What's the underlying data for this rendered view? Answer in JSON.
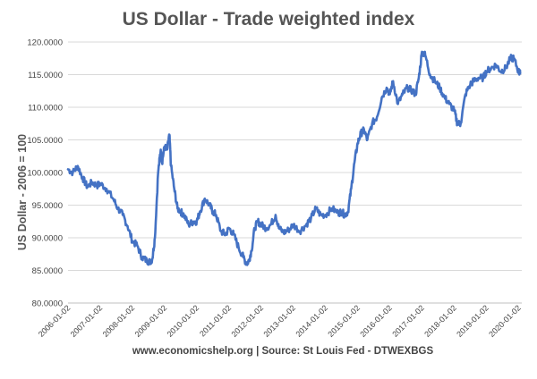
{
  "chart_data": {
    "type": "line",
    "title": "US Dollar - Trade weighted index",
    "xlabel": "",
    "ylabel": "US Dollar - 2006 = 100",
    "ylim": [
      80,
      120
    ],
    "y_ticks": [
      "120.0000",
      "115.0000",
      "110.0000",
      "105.0000",
      "100.0000",
      "95.0000",
      "90.0000",
      "85.0000",
      "80.0000"
    ],
    "x_ticks": [
      "2006-01-02",
      "2007-01-02",
      "2008-01-02",
      "2009-01-02",
      "2010-01-02",
      "2011-01-02",
      "2012-01-02",
      "2013-01-02",
      "2014-01-02",
      "2015-01-02",
      "2016-01-02",
      "2017-01-02",
      "2018-01-02",
      "2019-01-02",
      "2020-01-02"
    ],
    "xlim": [
      2006.0,
      2020.1
    ],
    "grid": true,
    "line_color": "#4472C4",
    "source": "www.economicshelp.org | Source: St Louis Fed - DTWEXBGS",
    "series": [
      {
        "name": "US Dollar - Trade weighted index",
        "x": [
          2006.0,
          2006.15,
          2006.3,
          2006.45,
          2006.6,
          2006.75,
          2006.9,
          2007.0,
          2007.2,
          2007.4,
          2007.55,
          2007.7,
          2007.85,
          2008.0,
          2008.15,
          2008.3,
          2008.45,
          2008.55,
          2008.62,
          2008.7,
          2008.8,
          2008.88,
          2008.92,
          2009.0,
          2009.08,
          2009.15,
          2009.2,
          2009.3,
          2009.4,
          2009.5,
          2009.6,
          2009.75,
          2009.9,
          2010.0,
          2010.1,
          2010.25,
          2010.4,
          2010.5,
          2010.6,
          2010.75,
          2010.9,
          2011.0,
          2011.15,
          2011.3,
          2011.45,
          2011.55,
          2011.62,
          2011.7,
          2011.8,
          2011.9,
          2012.0,
          2012.15,
          2012.3,
          2012.45,
          2012.55,
          2012.7,
          2012.85,
          2013.0,
          2013.2,
          2013.4,
          2013.55,
          2013.7,
          2013.85,
          2014.0,
          2014.2,
          2014.4,
          2014.5,
          2014.6,
          2014.7,
          2014.8,
          2014.9,
          2015.0,
          2015.1,
          2015.2,
          2015.3,
          2015.45,
          2015.6,
          2015.75,
          2015.9,
          2016.0,
          2016.1,
          2016.25,
          2016.4,
          2016.55,
          2016.7,
          2016.8,
          2016.9,
          2017.0,
          2017.1,
          2017.25,
          2017.4,
          2017.55,
          2017.7,
          2017.85,
          2018.0,
          2018.1,
          2018.2,
          2018.35,
          2018.5,
          2018.6,
          2018.75,
          2018.9,
          2019.0,
          2019.15,
          2019.3,
          2019.45,
          2019.6,
          2019.75,
          2019.85,
          2020.0,
          2020.05
        ],
        "values": [
          100.5,
          100.0,
          101.0,
          99.2,
          97.8,
          98.5,
          98.0,
          98.3,
          97.5,
          96.0,
          94.5,
          93.5,
          91.8,
          89.5,
          88.8,
          87.0,
          86.5,
          86.3,
          86.8,
          90.0,
          100.0,
          103.5,
          101.5,
          104.0,
          103.5,
          105.8,
          101.0,
          97.5,
          94.5,
          94.0,
          93.5,
          92.0,
          92.5,
          92.5,
          94.0,
          96.0,
          95.0,
          94.0,
          93.5,
          91.0,
          90.5,
          91.5,
          90.5,
          88.5,
          87.0,
          86.0,
          86.5,
          88.0,
          91.5,
          92.5,
          92.0,
          91.5,
          92.0,
          93.5,
          91.5,
          90.8,
          91.2,
          92.0,
          91.0,
          92.0,
          93.0,
          94.5,
          93.5,
          93.5,
          94.5,
          93.8,
          94.0,
          93.5,
          94.0,
          97.5,
          101.5,
          104.5,
          106.0,
          106.5,
          105.0,
          107.5,
          108.5,
          111.5,
          113.0,
          112.0,
          114.0,
          110.5,
          112.0,
          113.0,
          112.5,
          112.0,
          114.5,
          118.5,
          118.0,
          115.0,
          114.0,
          113.0,
          111.5,
          110.5,
          109.5,
          107.5,
          107.5,
          112.0,
          113.5,
          114.0,
          114.5,
          114.5,
          115.5,
          116.0,
          116.5,
          115.5,
          116.0,
          117.5,
          117.5,
          115.5,
          115.2
        ]
      }
    ]
  }
}
